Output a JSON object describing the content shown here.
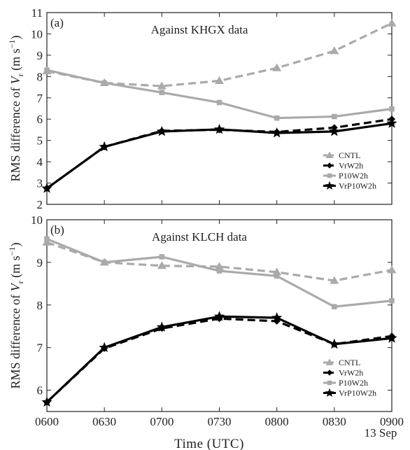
{
  "figure": {
    "x_tick_labels": [
      "0600",
      "0630",
      "0700",
      "0730",
      "0800",
      "0830",
      "0900"
    ],
    "date_label": "13 Sep",
    "xlabel": "Time (UTC)"
  },
  "colors": {
    "cntl": "#aaaaaa",
    "p10w2h": "#aaaaaa",
    "vrw2h": "#000000",
    "vrp10w2h": "#000000"
  },
  "chart_data": [
    {
      "type": "line",
      "panel_label": "(a)",
      "title": "Against  KHGX  data",
      "ylabel": "RMS difference of V_r (m s⁻¹)",
      "ylabel_parts": {
        "prefix": "RMS difference of ",
        "var": "V",
        "sub": "r",
        "unit_open": " (m s",
        "sup": "−1",
        "unit_close": ")"
      },
      "xlabel": "Time (UTC)",
      "categories": [
        "0600",
        "0630",
        "0700",
        "0730",
        "0800",
        "0830",
        "0900"
      ],
      "ylim": [
        2,
        11
      ],
      "yticks": [
        2,
        3,
        4,
        5,
        6,
        7,
        8,
        9,
        10,
        11
      ],
      "legend_position": "lower-right",
      "series": [
        {
          "name": "CNTL",
          "values": [
            8.25,
            7.7,
            7.55,
            7.8,
            8.4,
            9.2,
            10.5
          ]
        },
        {
          "name": "VrW2h",
          "values": [
            2.75,
            4.7,
            5.45,
            5.5,
            5.4,
            5.6,
            6.0
          ]
        },
        {
          "name": "P10W2h",
          "values": [
            8.3,
            7.7,
            7.25,
            6.78,
            6.05,
            6.12,
            6.48
          ]
        },
        {
          "name": "VrP10W2h",
          "values": [
            2.75,
            4.7,
            5.42,
            5.52,
            5.35,
            5.42,
            5.8
          ]
        }
      ]
    },
    {
      "type": "line",
      "panel_label": "(b)",
      "title": "Against  KLCH  data",
      "ylabel": "RMS difference of V_r (m s⁻¹)",
      "ylabel_parts": {
        "prefix": "RMS difference of ",
        "var": "V",
        "sub": "r",
        "unit_open": " (m s",
        "sup": "−1",
        "unit_close": ")"
      },
      "xlabel": "Time (UTC)",
      "categories": [
        "0600",
        "0630",
        "0700",
        "0730",
        "0800",
        "0830",
        "0900"
      ],
      "ylim": [
        5.5,
        10
      ],
      "yticks": [
        6,
        7,
        8,
        9,
        10
      ],
      "legend_position": "lower-right",
      "series": [
        {
          "name": "CNTL",
          "values": [
            9.47,
            9.0,
            8.92,
            8.9,
            8.77,
            8.57,
            8.82
          ]
        },
        {
          "name": "VrW2h",
          "values": [
            5.72,
            6.98,
            7.45,
            7.68,
            7.62,
            7.08,
            7.27
          ]
        },
        {
          "name": "P10W2h",
          "values": [
            9.55,
            9.0,
            9.13,
            8.8,
            8.68,
            7.96,
            8.1
          ]
        },
        {
          "name": "VrP10W2h",
          "values": [
            5.72,
            7.0,
            7.48,
            7.73,
            7.7,
            7.08,
            7.22
          ]
        }
      ]
    }
  ]
}
